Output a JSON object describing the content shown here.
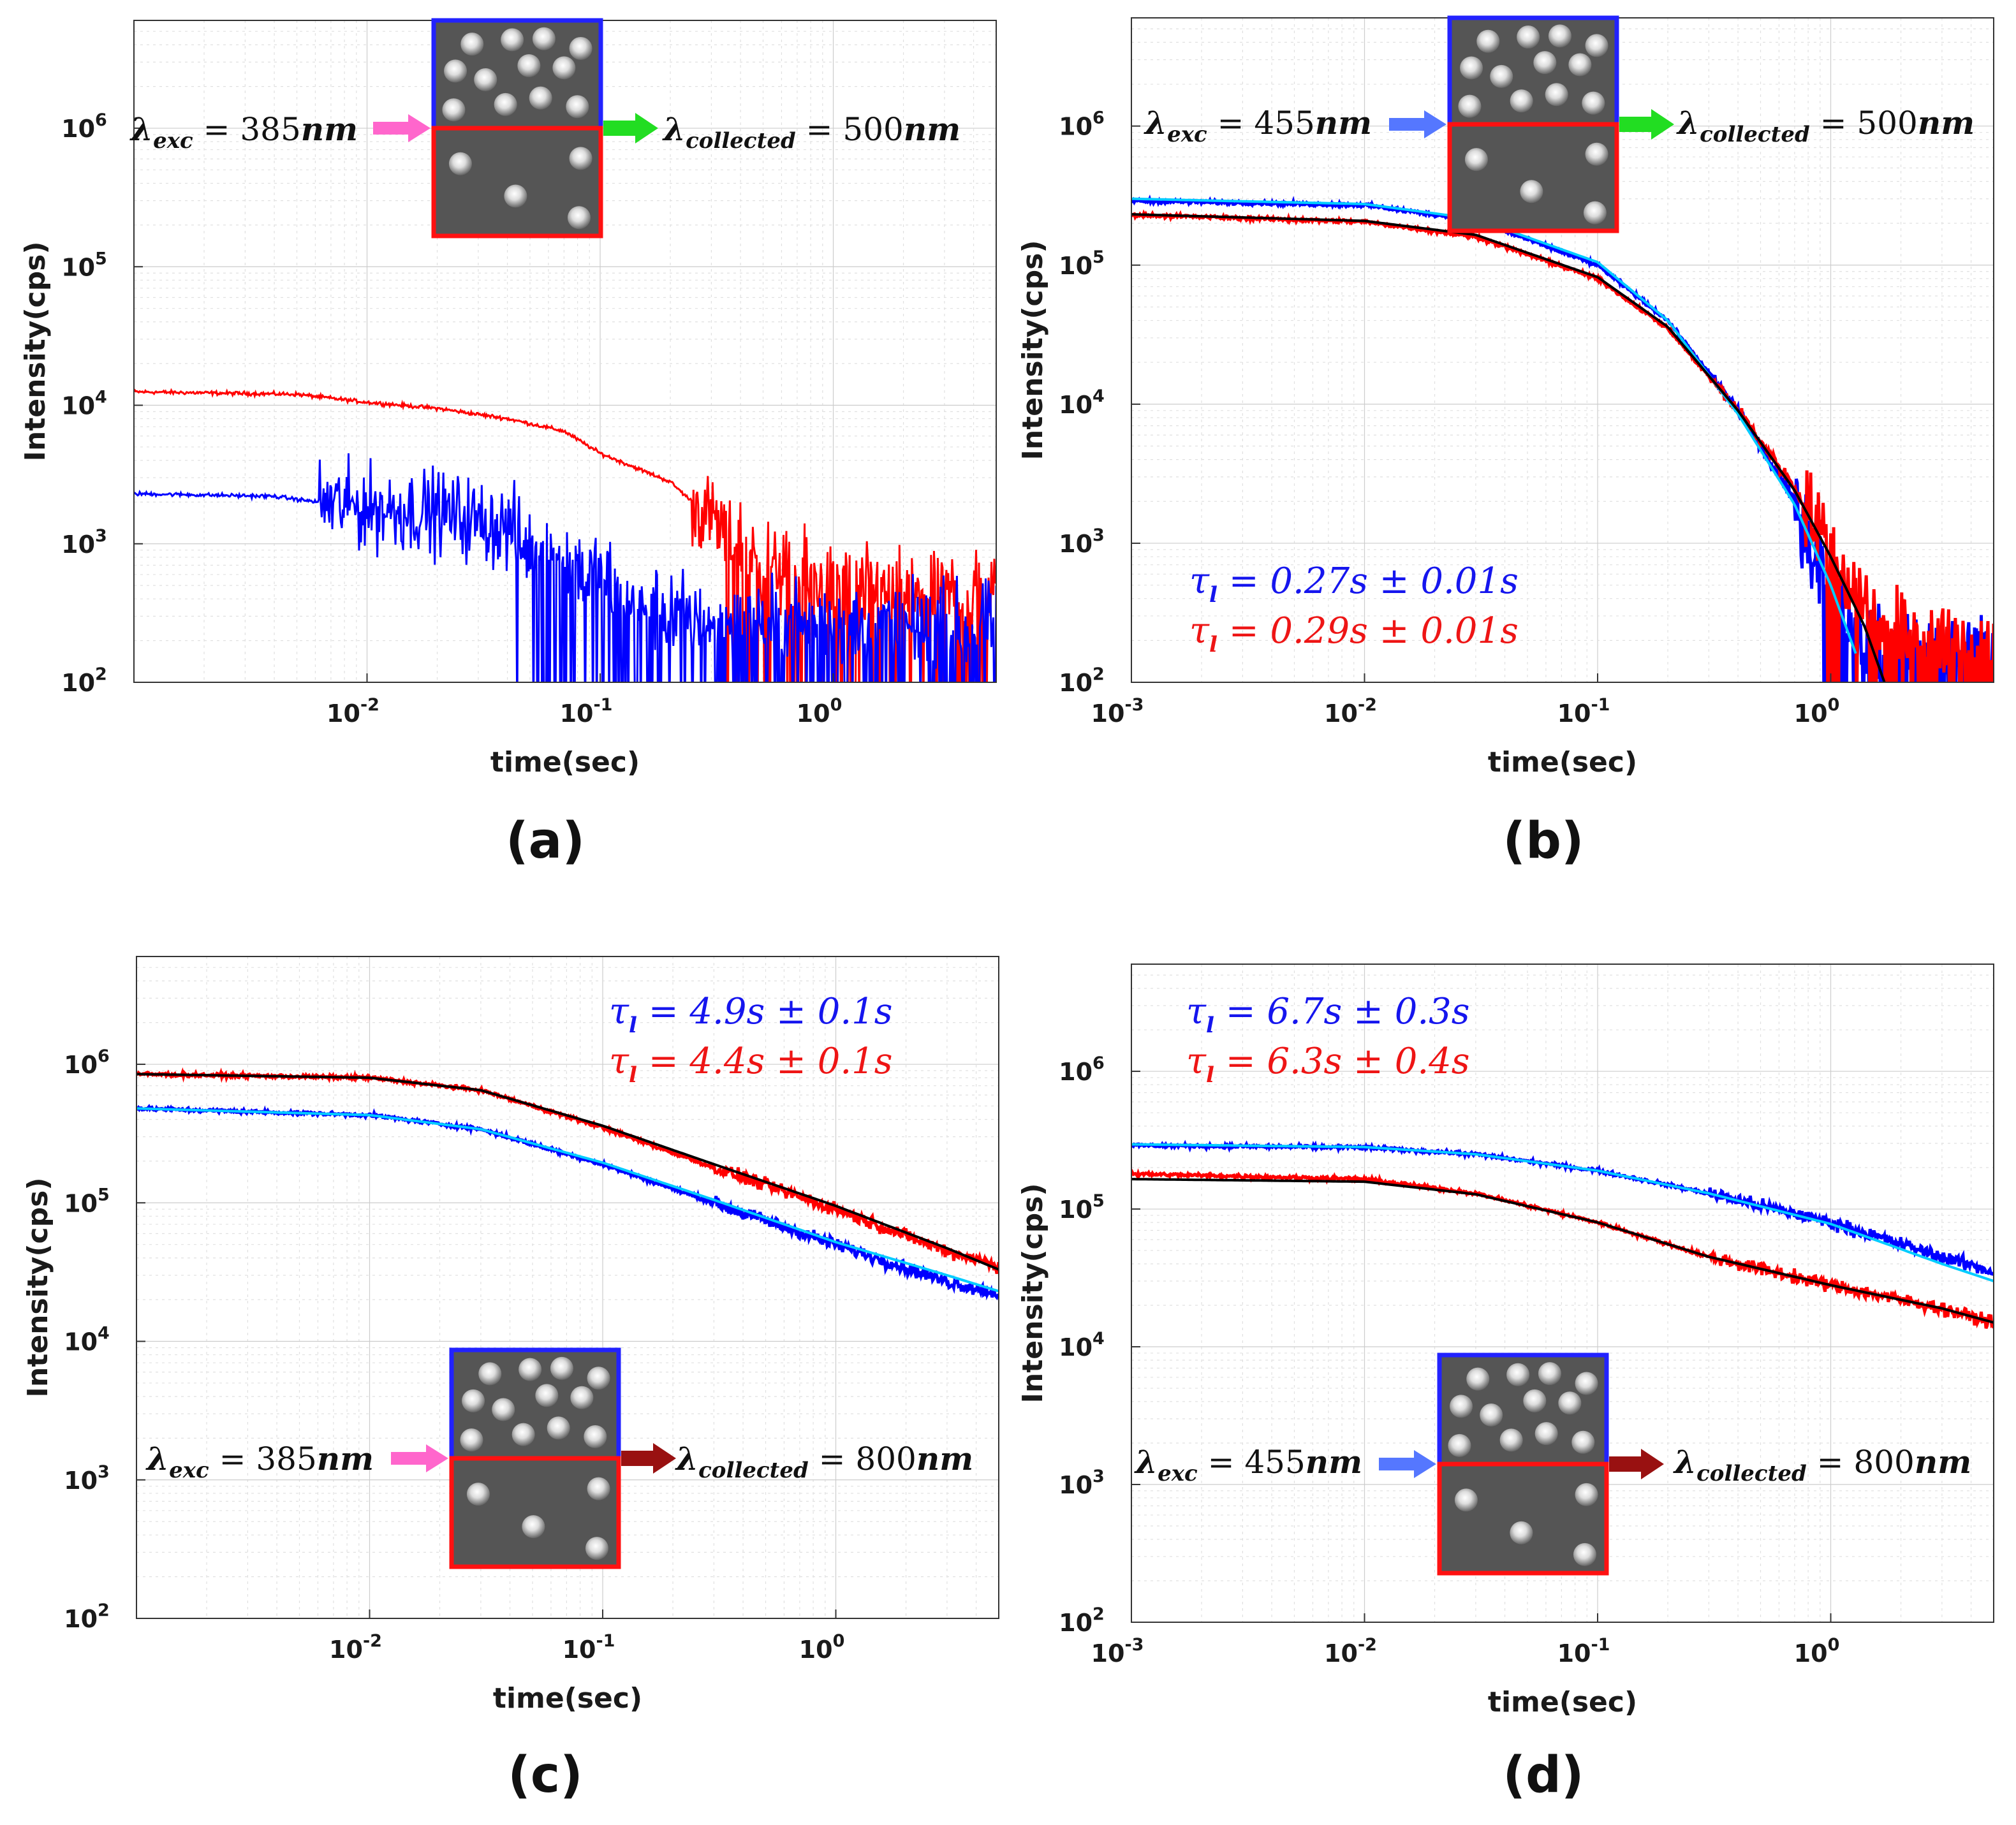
{
  "chart_data": [
    {
      "type": "line",
      "panel": "(a)",
      "xscale": "log",
      "yscale": "log",
      "xlim": [
        0.001,
        5
      ],
      "ylim": [
        100,
        6000000
      ],
      "xlabel": "time(sec)",
      "ylabel": "Intensity(cps)",
      "x_ticks": [
        {
          "base": "10",
          "exp": "-2"
        },
        {
          "base": "10",
          "exp": "-1"
        },
        {
          "base": "10",
          "exp": "0"
        }
      ],
      "y_ticks": [
        {
          "base": "10",
          "exp": "2"
        },
        {
          "base": "10",
          "exp": "3"
        },
        {
          "base": "10",
          "exp": "4"
        },
        {
          "base": "10",
          "exp": "5"
        },
        {
          "base": "10",
          "exp": "6"
        }
      ],
      "inset": {
        "lambda_exc": "= 385",
        "exc_unit": "nm",
        "lambda_col": "= 500",
        "col_unit": "nm",
        "exc_color": "#ff66cc",
        "col_color": "#22dd22"
      },
      "series": [
        {
          "name": "red",
          "color": "#ff0000",
          "noisy": true,
          "points": [
            [
              0.001,
              12500
            ],
            [
              0.005,
              12000
            ],
            [
              0.01,
              10500
            ],
            [
              0.02,
              9500
            ],
            [
              0.04,
              8000
            ],
            [
              0.07,
              6500
            ],
            [
              0.1,
              4500
            ],
            [
              0.2,
              2800
            ],
            [
              0.3,
              1500
            ],
            [
              0.5,
              700
            ],
            [
              1,
              500
            ],
            [
              2,
              450
            ],
            [
              5,
              450
            ]
          ]
        },
        {
          "name": "blue",
          "color": "#0000ff",
          "noisy": true,
          "points": [
            [
              0.001,
              2300
            ],
            [
              0.004,
              2200
            ],
            [
              0.01,
              1800
            ],
            [
              0.02,
              1700
            ],
            [
              0.04,
              1300
            ],
            [
              0.08,
              700
            ],
            [
              0.15,
              350
            ],
            [
              0.3,
              280
            ],
            [
              1,
              260
            ],
            [
              5,
              260
            ]
          ]
        }
      ],
      "fits": []
    },
    {
      "type": "line",
      "panel": "(b)",
      "xscale": "log",
      "yscale": "log",
      "xlim": [
        0.001,
        5
      ],
      "ylim": [
        100,
        6000000
      ],
      "xlabel": "time(sec)",
      "ylabel": "Intensity(cps)",
      "x_ticks": [
        {
          "base": "10",
          "exp": "-3"
        },
        {
          "base": "10",
          "exp": "-2"
        },
        {
          "base": "10",
          "exp": "-1"
        },
        {
          "base": "10",
          "exp": "0"
        }
      ],
      "y_ticks": [
        {
          "base": "10",
          "exp": "2"
        },
        {
          "base": "10",
          "exp": "3"
        },
        {
          "base": "10",
          "exp": "4"
        },
        {
          "base": "10",
          "exp": "5"
        },
        {
          "base": "10",
          "exp": "6"
        }
      ],
      "inset": {
        "lambda_exc": "= 455",
        "exc_unit": "nm",
        "lambda_col": "= 500",
        "col_unit": "nm",
        "exc_color": "#5577ff",
        "col_color": "#22dd22"
      },
      "fit_text": [
        {
          "sym": "τ",
          "sub": "l",
          "text": " = 0.27s ± 0.01s",
          "color": "#1515ee"
        },
        {
          "sym": "τ",
          "sub": "l",
          "text": " = 0.29s ± 0.01s",
          "color": "#ee1515"
        }
      ],
      "series": [
        {
          "name": "blue",
          "color": "#0000ff",
          "noisy": true,
          "points": [
            [
              0.001,
              290000
            ],
            [
              0.01,
              270000
            ],
            [
              0.03,
              210000
            ],
            [
              0.1,
              100000
            ],
            [
              0.2,
              40000
            ],
            [
              0.4,
              9000
            ],
            [
              0.7,
              2000
            ],
            [
              1,
              500
            ],
            [
              1.5,
              180
            ],
            [
              3,
              150
            ],
            [
              5,
              150
            ]
          ]
        },
        {
          "name": "red",
          "color": "#ff0000",
          "noisy": true,
          "points": [
            [
              0.001,
              230000
            ],
            [
              0.01,
              205000
            ],
            [
              0.03,
              160000
            ],
            [
              0.1,
              80000
            ],
            [
              0.2,
              35000
            ],
            [
              0.4,
              9000
            ],
            [
              0.7,
              2500
            ],
            [
              1,
              900
            ],
            [
              1.5,
              300
            ],
            [
              3,
              180
            ],
            [
              5,
              180
            ]
          ]
        }
      ],
      "fits": [
        {
          "name": "cyan-fit",
          "color": "#00ccff",
          "points": [
            [
              0.001,
              300000
            ],
            [
              0.01,
              275000
            ],
            [
              0.03,
              215000
            ],
            [
              0.1,
              105000
            ],
            [
              0.2,
              40000
            ],
            [
              0.4,
              8500
            ],
            [
              0.7,
              1900
            ],
            [
              1,
              500
            ],
            [
              1.3,
              150
            ]
          ]
        },
        {
          "name": "black-fit",
          "color": "#000000",
          "points": [
            [
              0.001,
              232000
            ],
            [
              0.01,
              208000
            ],
            [
              0.03,
              165000
            ],
            [
              0.1,
              82000
            ],
            [
              0.2,
              36000
            ],
            [
              0.4,
              9000
            ],
            [
              0.7,
              2400
            ],
            [
              1,
              800
            ],
            [
              1.4,
              250
            ],
            [
              1.7,
              100
            ]
          ]
        }
      ]
    },
    {
      "type": "line",
      "panel": "(c)",
      "xscale": "log",
      "yscale": "log",
      "xlim": [
        0.001,
        5
      ],
      "ylim": [
        100,
        6000000
      ],
      "xlabel": "time(sec)",
      "ylabel": "Intensity(cps)",
      "x_ticks": [
        {
          "base": "10",
          "exp": "-2"
        },
        {
          "base": "10",
          "exp": "-1"
        },
        {
          "base": "10",
          "exp": "0"
        }
      ],
      "y_ticks": [
        {
          "base": "10",
          "exp": "2"
        },
        {
          "base": "10",
          "exp": "3"
        },
        {
          "base": "10",
          "exp": "4"
        },
        {
          "base": "10",
          "exp": "5"
        },
        {
          "base": "10",
          "exp": "6"
        }
      ],
      "inset": {
        "lambda_exc": "= 385",
        "exc_unit": "nm",
        "lambda_col": "= 800",
        "col_unit": "nm",
        "exc_color": "#ff66cc",
        "col_color": "#991111"
      },
      "fit_text": [
        {
          "sym": "τ",
          "sub": "l",
          "text": " = 4.9s ± 0.1s",
          "color": "#1515ee"
        },
        {
          "sym": "τ",
          "sub": "l",
          "text": " = 4.4s ± 0.1s",
          "color": "#ee1515"
        }
      ],
      "series": [
        {
          "name": "red",
          "color": "#ff0000",
          "noisy": true,
          "points": [
            [
              0.001,
              850000
            ],
            [
              0.01,
              800000
            ],
            [
              0.03,
              650000
            ],
            [
              0.1,
              350000
            ],
            [
              0.3,
              180000
            ],
            [
              1,
              90000
            ],
            [
              3,
              45000
            ],
            [
              5,
              35000
            ]
          ]
        },
        {
          "name": "blue",
          "color": "#0000ff",
          "noisy": true,
          "points": [
            [
              0.001,
              480000
            ],
            [
              0.01,
              430000
            ],
            [
              0.03,
              340000
            ],
            [
              0.1,
              190000
            ],
            [
              0.3,
              100000
            ],
            [
              1,
              50000
            ],
            [
              3,
              27000
            ],
            [
              5,
              22000
            ]
          ]
        }
      ],
      "fits": [
        {
          "name": "black-fit",
          "color": "#000000",
          "points": [
            [
              0.001,
              850000
            ],
            [
              0.01,
              800000
            ],
            [
              0.03,
              650000
            ],
            [
              0.1,
              360000
            ],
            [
              0.3,
              190000
            ],
            [
              1,
              95000
            ],
            [
              3,
              47000
            ],
            [
              5,
              33000
            ]
          ]
        },
        {
          "name": "cyan-fit",
          "color": "#00ccff",
          "points": [
            [
              0.001,
              480000
            ],
            [
              0.01,
              430000
            ],
            [
              0.03,
              340000
            ],
            [
              0.1,
              195000
            ],
            [
              0.3,
              105000
            ],
            [
              1,
              52000
            ],
            [
              3,
              30000
            ],
            [
              5,
              23000
            ]
          ]
        }
      ]
    },
    {
      "type": "line",
      "panel": "(d)",
      "xscale": "log",
      "yscale": "log",
      "xlim": [
        0.001,
        5
      ],
      "ylim": [
        100,
        6000000
      ],
      "xlabel": "time(sec)",
      "ylabel": "Intensity(cps)",
      "x_ticks": [
        {
          "base": "10",
          "exp": "-3"
        },
        {
          "base": "10",
          "exp": "-2"
        },
        {
          "base": "10",
          "exp": "-1"
        },
        {
          "base": "10",
          "exp": "0"
        }
      ],
      "y_ticks": [
        {
          "base": "10",
          "exp": "2"
        },
        {
          "base": "10",
          "exp": "3"
        },
        {
          "base": "10",
          "exp": "4"
        },
        {
          "base": "10",
          "exp": "5"
        },
        {
          "base": "10",
          "exp": "6"
        }
      ],
      "inset": {
        "lambda_exc": "= 455",
        "exc_unit": "nm",
        "lambda_col": "= 800",
        "col_unit": "nm",
        "exc_color": "#5577ff",
        "col_color": "#991111"
      },
      "fit_text": [
        {
          "sym": "τ",
          "sub": "l",
          "text": " = 6.7s ± 0.3s",
          "color": "#1515ee"
        },
        {
          "sym": "τ",
          "sub": "l",
          "text": " = 6.3s ± 0.4s",
          "color": "#ee1515"
        }
      ],
      "series": [
        {
          "name": "blue",
          "color": "#0000ff",
          "noisy": true,
          "points": [
            [
              0.001,
              290000
            ],
            [
              0.01,
              280000
            ],
            [
              0.03,
              250000
            ],
            [
              0.1,
              190000
            ],
            [
              0.3,
              130000
            ],
            [
              1,
              80000
            ],
            [
              3,
              45000
            ],
            [
              5,
              35000
            ]
          ]
        },
        {
          "name": "red",
          "color": "#ff0000",
          "noisy": true,
          "points": [
            [
              0.001,
              180000
            ],
            [
              0.01,
              165000
            ],
            [
              0.03,
              130000
            ],
            [
              0.1,
              80000
            ],
            [
              0.3,
              45000
            ],
            [
              1,
              28000
            ],
            [
              3,
              19000
            ],
            [
              5,
              15000
            ]
          ]
        }
      ],
      "fits": [
        {
          "name": "cyan-fit",
          "color": "#00ccff",
          "points": [
            [
              0.001,
              295000
            ],
            [
              0.01,
              282000
            ],
            [
              0.03,
              250000
            ],
            [
              0.1,
              190000
            ],
            [
              0.3,
              130000
            ],
            [
              1,
              78000
            ],
            [
              3,
              40000
            ],
            [
              5,
              30000
            ]
          ]
        },
        {
          "name": "black-fit",
          "color": "#000000",
          "points": [
            [
              0.001,
              165000
            ],
            [
              0.01,
              158000
            ],
            [
              0.03,
              128000
            ],
            [
              0.1,
              80000
            ],
            [
              0.3,
              45000
            ],
            [
              1,
              28000
            ],
            [
              3,
              19000
            ],
            [
              5,
              15000
            ]
          ]
        }
      ]
    }
  ]
}
